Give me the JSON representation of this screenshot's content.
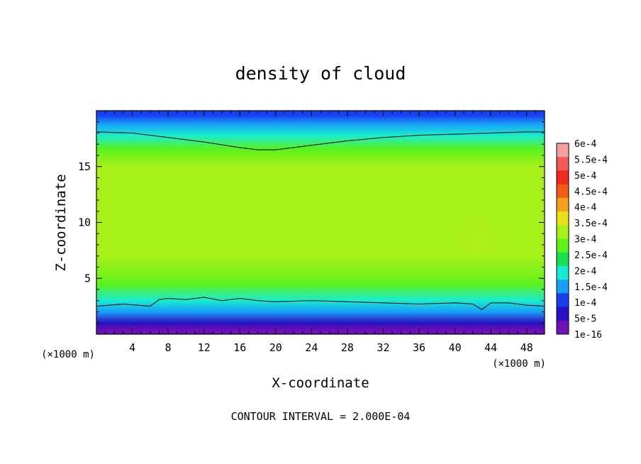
{
  "chart_data": {
    "type": "heatmap",
    "title": "density of cloud",
    "xlabel": "X-coordinate",
    "ylabel": "Z-coordinate",
    "x_unit": "(×1000 m)",
    "footer": "CONTOUR INTERVAL = 2.000E-04",
    "xlim": [
      0,
      50
    ],
    "ylim": [
      0,
      20
    ],
    "xticks": [
      4,
      8,
      12,
      16,
      20,
      24,
      28,
      32,
      36,
      40,
      44,
      48
    ],
    "yticks": [
      5,
      10,
      15
    ],
    "colorbar": {
      "labels": [
        "6e-4",
        "5.5e-4",
        "5e-4",
        "4.5e-4",
        "4e-4",
        "3.5e-4",
        "3e-4",
        "2.5e-4",
        "2e-4",
        "1.5e-4",
        "1e-4",
        "5e-5",
        "1e-16"
      ],
      "colors": [
        "#f5a0a0",
        "#f25a55",
        "#ee2a1e",
        "#f25a1a",
        "#f7a01c",
        "#e8e01c",
        "#a8f01a",
        "#5ef21a",
        "#18e050",
        "#18ecd0",
        "#18a0f8",
        "#1840f0",
        "#2a10c0",
        "#7010b8"
      ]
    },
    "z_profile": [
      {
        "z": 0.3,
        "v": 0.0
      },
      {
        "z": 1.0,
        "v": 3e-05
      },
      {
        "z": 2.0,
        "v": 0.00012
      },
      {
        "z": 3.0,
        "v": 0.0002
      },
      {
        "z": 4.5,
        "v": 0.00026
      },
      {
        "z": 7.0,
        "v": 0.0003
      },
      {
        "z": 9.0,
        "v": 0.00031
      },
      {
        "z": 11.0,
        "v": 0.00033
      },
      {
        "z": 13.0,
        "v": 0.00033
      },
      {
        "z": 15.0,
        "v": 0.00031
      },
      {
        "z": 16.5,
        "v": 0.00027
      },
      {
        "z": 17.8,
        "v": 0.0002
      },
      {
        "z": 18.8,
        "v": 0.00015
      },
      {
        "z": 19.6,
        "v": 0.00011
      }
    ],
    "contour_lines": [
      {
        "name": "upper",
        "points": [
          [
            0,
            18.1
          ],
          [
            4,
            18.0
          ],
          [
            8,
            17.6
          ],
          [
            12,
            17.2
          ],
          [
            16,
            16.7
          ],
          [
            18,
            16.5
          ],
          [
            20,
            16.5
          ],
          [
            24,
            16.9
          ],
          [
            28,
            17.3
          ],
          [
            32,
            17.6
          ],
          [
            36,
            17.8
          ],
          [
            40,
            17.9
          ],
          [
            44,
            18.0
          ],
          [
            48,
            18.1
          ],
          [
            50,
            18.1
          ]
        ]
      },
      {
        "name": "lower",
        "points": [
          [
            0,
            2.5
          ],
          [
            3,
            2.7
          ],
          [
            6,
            2.5
          ],
          [
            7,
            3.1
          ],
          [
            8,
            3.2
          ],
          [
            10,
            3.1
          ],
          [
            12,
            3.3
          ],
          [
            14,
            3.0
          ],
          [
            16,
            3.2
          ],
          [
            18,
            3.0
          ],
          [
            20,
            2.9
          ],
          [
            24,
            3.0
          ],
          [
            28,
            2.9
          ],
          [
            32,
            2.8
          ],
          [
            36,
            2.7
          ],
          [
            40,
            2.8
          ],
          [
            42,
            2.7
          ],
          [
            43,
            2.2
          ],
          [
            44,
            2.8
          ],
          [
            46,
            2.8
          ],
          [
            48,
            2.6
          ],
          [
            50,
            2.5
          ]
        ]
      }
    ],
    "highlight": {
      "x": 42.5,
      "z": 8.5,
      "v": 0.00036
    }
  }
}
